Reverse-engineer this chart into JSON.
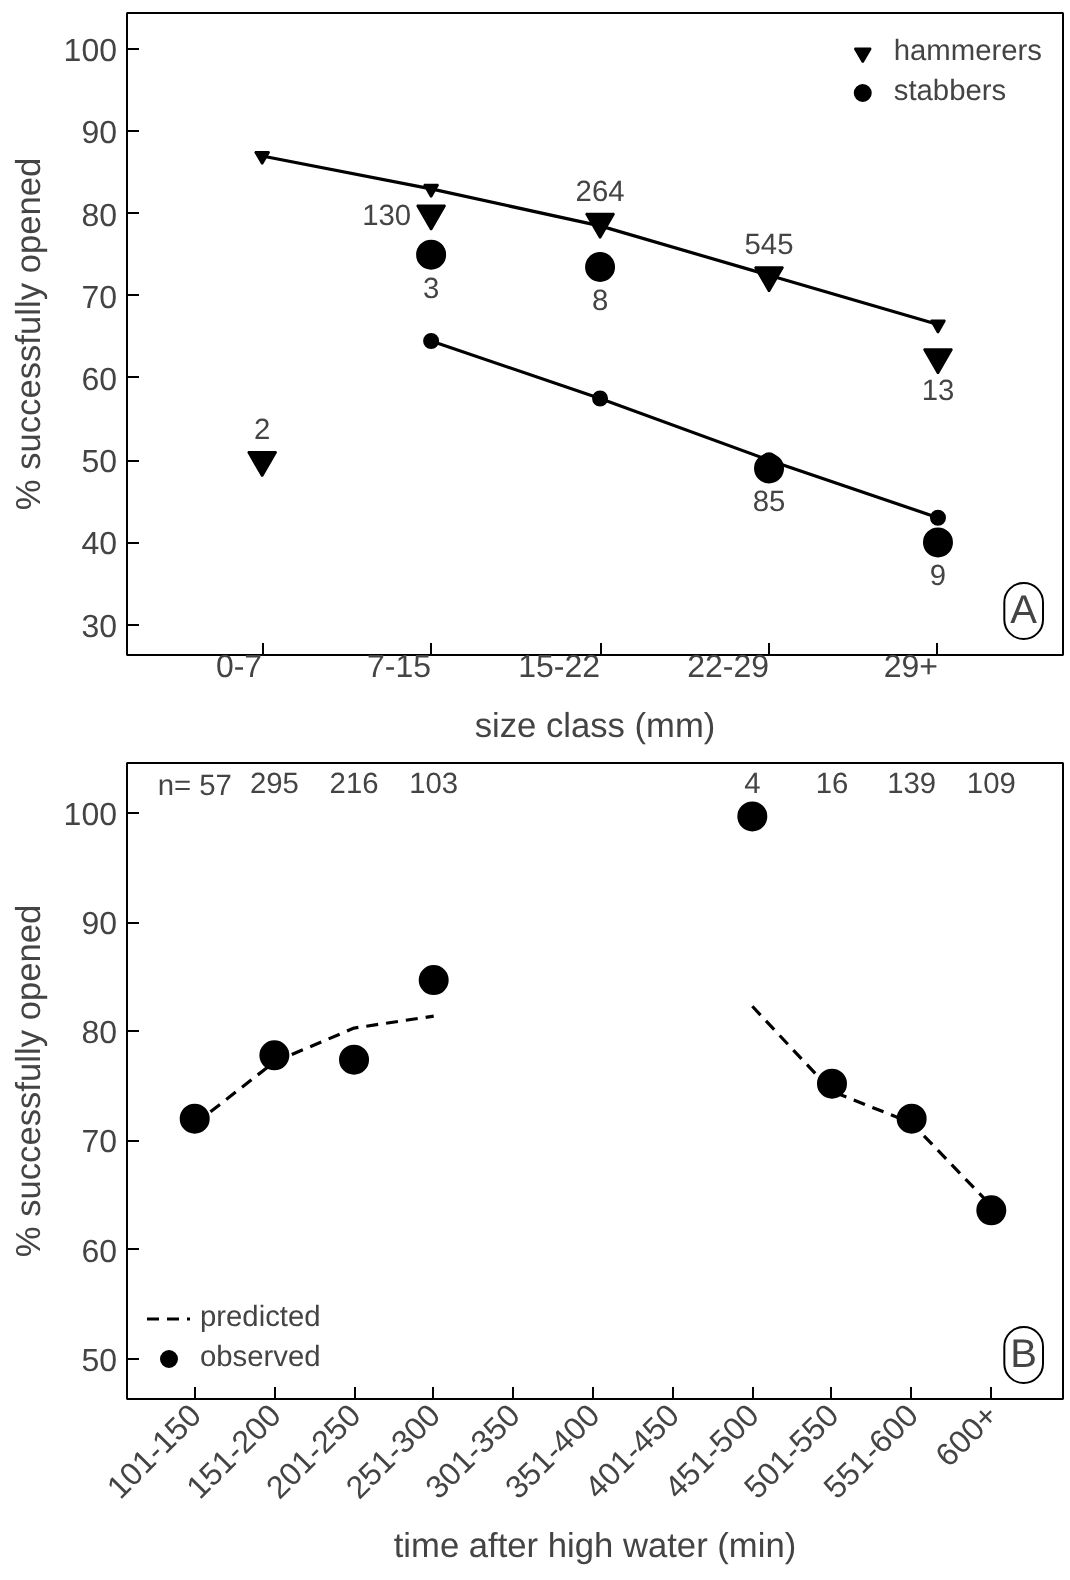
{
  "chart_data": [
    {
      "type": "scatter",
      "xlabel": "size class (mm)",
      "ylabel": "% successfully opened",
      "categories": [
        "0-7",
        "7-15",
        "15-22",
        "22-29",
        "29+"
      ],
      "ylim": [
        26.3,
        104.4
      ],
      "yticks": [
        30,
        40,
        50,
        60,
        70,
        80,
        90,
        100
      ],
      "grid": false,
      "legend": "top right",
      "annotations": [
        "A",
        "2",
        "130",
        "264",
        "545",
        "13",
        "3",
        "8",
        "85",
        "9"
      ],
      "series": [
        {
          "name": "hammerers",
          "marker": "triangle",
          "color": "#000000",
          "values": [
            50,
            80,
            79,
            72.5,
            62.5
          ]
        },
        {
          "name": "stabbers",
          "marker": "circle",
          "color": "#000000",
          "values": [
            null,
            75,
            73.5,
            49,
            40
          ]
        },
        {
          "type": "line",
          "marker": "triangle",
          "line_style": "solid",
          "color": "#000000",
          "values": [
            87,
            83,
            78.5,
            72.5,
            66.5
          ]
        },
        {
          "type": "line",
          "marker": "circle",
          "line_style": "solid",
          "color": "#000000",
          "values": [
            null,
            64.5,
            57.5,
            50,
            43
          ]
        }
      ]
    },
    {
      "type": "scatter",
      "xlabel": "time after high water (min)",
      "ylabel": "% successfully opened",
      "categories": [
        "101-150",
        "151-200",
        "201-250",
        "251-300",
        "301-350",
        "351-400",
        "401-450",
        "451-500",
        "501-550",
        "551-600",
        "600+"
      ],
      "ylim": [
        46.3,
        104.6
      ],
      "yticks": [
        50,
        60,
        70,
        80,
        90,
        100
      ],
      "grid": false,
      "legend": "bottom left",
      "annotations": [
        "B",
        "n= 57",
        "295",
        "216",
        "103",
        "4",
        "16",
        "139",
        "109"
      ],
      "series": [
        {
          "name": "predicted",
          "type": "line",
          "marker": "none",
          "line_style": "dashed",
          "color": "#000000",
          "values": [
            71.5,
            77.2,
            80.3,
            81.4,
            null,
            null,
            null,
            82.3,
            74.5,
            71.6,
            64
          ]
        },
        {
          "name": "observed",
          "marker": "circle",
          "color": "#000000",
          "values": [
            72,
            77.8,
            77.4,
            84.7,
            null,
            null,
            null,
            99.7,
            75.2,
            72,
            63.6
          ]
        }
      ]
    }
  ]
}
